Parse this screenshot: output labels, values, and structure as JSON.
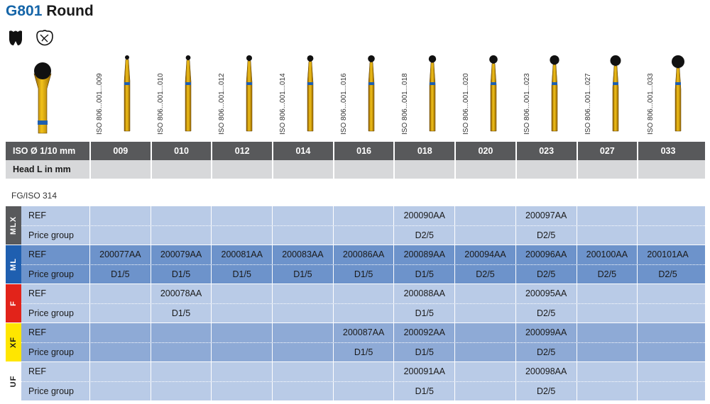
{
  "title": {
    "code": "G801",
    "name": "Round"
  },
  "icons": [
    "crown-icon",
    "crack-tooth-icon"
  ],
  "iso_labels": [
    "ISO 806...001...009",
    "ISO 806...001...010",
    "ISO 806...001...012",
    "ISO 806...001...014",
    "ISO 806...001...016",
    "ISO 806...001...018",
    "ISO 806...001...020",
    "ISO 806...001...023",
    "ISO 806...001...027",
    "ISO 806...001...033"
  ],
  "header": {
    "iso_label": "ISO Ø 1/10 mm",
    "head_label": "Head L in mm",
    "sizes": [
      "009",
      "010",
      "012",
      "014",
      "016",
      "018",
      "020",
      "023",
      "027",
      "033"
    ]
  },
  "subtitle": "FG/ISO 314",
  "colors": {
    "MLX": "#58595b",
    "ML": "#1f5fb0",
    "F": "#e2231a",
    "XF": "#ffe600",
    "UF": "#ffffff"
  },
  "groups": [
    {
      "tag": "MLX",
      "rows": [
        {
          "label": "REF",
          "cells": [
            "",
            "",
            "",
            "",
            "",
            "200090AA",
            "",
            "200097AA",
            "",
            ""
          ]
        },
        {
          "label": "Price group",
          "cells": [
            "",
            "",
            "",
            "",
            "",
            "D2/5",
            "",
            "D2/5",
            "",
            ""
          ]
        }
      ]
    },
    {
      "tag": "ML",
      "rows": [
        {
          "label": "REF",
          "cells": [
            "200077AA",
            "200079AA",
            "200081AA",
            "200083AA",
            "200086AA",
            "200089AA",
            "200094AA",
            "200096AA",
            "200100AA",
            "200101AA"
          ]
        },
        {
          "label": "Price group",
          "cells": [
            "D1/5",
            "D1/5",
            "D1/5",
            "D1/5",
            "D1/5",
            "D1/5",
            "D2/5",
            "D2/5",
            "D2/5",
            "D2/5"
          ]
        }
      ]
    },
    {
      "tag": "F",
      "rows": [
        {
          "label": "REF",
          "cells": [
            "",
            "200078AA",
            "",
            "",
            "",
            "200088AA",
            "",
            "200095AA",
            "",
            ""
          ]
        },
        {
          "label": "Price group",
          "cells": [
            "",
            "D1/5",
            "",
            "",
            "",
            "D1/5",
            "",
            "D2/5",
            "",
            ""
          ]
        }
      ]
    },
    {
      "tag": "XF",
      "rows": [
        {
          "label": "REF",
          "cells": [
            "",
            "",
            "",
            "",
            "200087AA",
            "200092AA",
            "",
            "200099AA",
            "",
            ""
          ]
        },
        {
          "label": "Price group",
          "cells": [
            "",
            "",
            "",
            "",
            "D1/5",
            "D1/5",
            "",
            "D2/5",
            "",
            ""
          ]
        }
      ]
    },
    {
      "tag": "UF",
      "rows": [
        {
          "label": "REF",
          "cells": [
            "",
            "",
            "",
            "",
            "",
            "200091AA",
            "",
            "200098AA",
            "",
            ""
          ]
        },
        {
          "label": "Price group",
          "cells": [
            "",
            "",
            "",
            "",
            "",
            "D1/5",
            "",
            "D2/5",
            "",
            ""
          ]
        }
      ]
    }
  ]
}
